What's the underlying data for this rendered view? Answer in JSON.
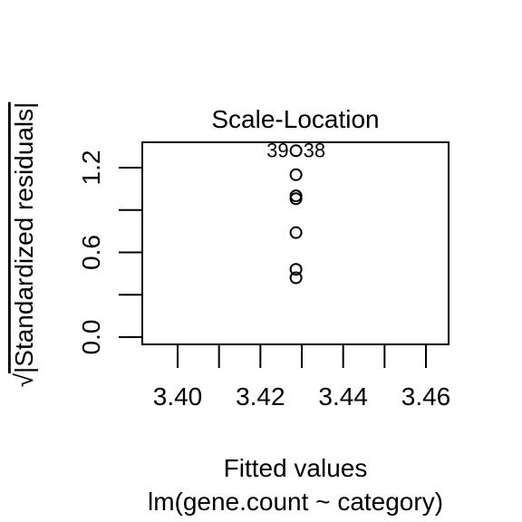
{
  "chart_data": {
    "type": "scatter",
    "title": "Scale-Location",
    "xlabel": "Fitted values",
    "subtitle": "lm(gene.count ~ category)",
    "ylabel_radical": "√",
    "ylabel": "|Standardized residuals|",
    "xlim": [
      3.39,
      3.465
    ],
    "ylim": [
      -0.05,
      1.37
    ],
    "x_ticks": [
      3.39,
      3.4,
      3.41,
      3.42,
      3.43,
      3.44,
      3.45,
      3.46
    ],
    "x_tick_labels": [
      "3.40",
      "3.42",
      "3.44",
      "3.46"
    ],
    "x_tick_label_values": [
      3.4,
      3.42,
      3.44,
      3.46
    ],
    "y_ticks": [
      0.0,
      0.3,
      0.6,
      0.9,
      1.2
    ],
    "y_tick_labels": [
      "0.0",
      "0.6",
      "1.2"
    ],
    "y_tick_label_values": [
      0.0,
      0.6,
      1.2
    ],
    "grid": false,
    "marker": "open-circle",
    "points": [
      {
        "x": 3.4286,
        "y": 1.32
      },
      {
        "x": 3.4286,
        "y": 1.15
      },
      {
        "x": 3.4286,
        "y": 1.0
      },
      {
        "x": 3.4286,
        "y": 0.98
      },
      {
        "x": 3.4286,
        "y": 0.74
      },
      {
        "x": 3.4286,
        "y": 0.48
      },
      {
        "x": 3.4286,
        "y": 0.42
      }
    ],
    "annotations": [
      {
        "text": "39",
        "x": 3.4286,
        "y": 1.32,
        "side": "left"
      },
      {
        "text": "38",
        "x": 3.4286,
        "y": 1.32,
        "side": "right"
      }
    ]
  }
}
